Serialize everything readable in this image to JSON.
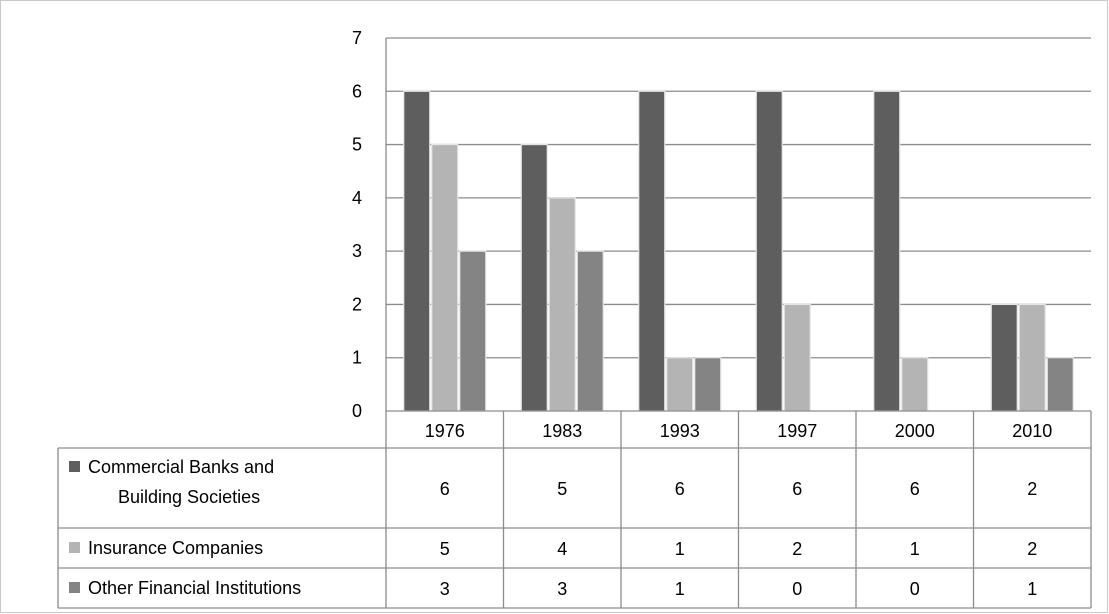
{
  "chart_data": {
    "type": "bar",
    "categories": [
      "1976",
      "1983",
      "1993",
      "1997",
      "2000",
      "2010"
    ],
    "series": [
      {
        "name_lines": [
          "Commercial Banks and",
          "Building Societies"
        ],
        "values": [
          6,
          5,
          6,
          6,
          6,
          2
        ],
        "color": "#5e5e5e"
      },
      {
        "name_lines": [
          "Insurance Companies"
        ],
        "values": [
          5,
          4,
          1,
          2,
          1,
          2
        ],
        "color": "#b4b4b4"
      },
      {
        "name_lines": [
          "Other Financial Institutions"
        ],
        "values": [
          3,
          3,
          1,
          0,
          0,
          1
        ],
        "color": "#848484"
      }
    ],
    "yticks": [
      "0",
      "1",
      "2",
      "3",
      "4",
      "5",
      "6",
      "7"
    ],
    "ylim": [
      0,
      7
    ],
    "grid": true,
    "legend": "data-table"
  }
}
